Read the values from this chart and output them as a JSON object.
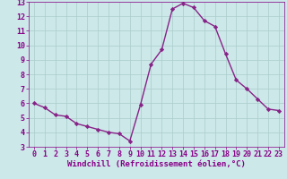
{
  "x": [
    0,
    1,
    2,
    3,
    4,
    5,
    6,
    7,
    8,
    9,
    10,
    11,
    12,
    13,
    14,
    15,
    16,
    17,
    18,
    19,
    20,
    21,
    22,
    23
  ],
  "y": [
    6.0,
    5.7,
    5.2,
    5.1,
    4.6,
    4.4,
    4.2,
    4.0,
    3.9,
    3.4,
    5.9,
    8.7,
    9.7,
    12.5,
    12.9,
    12.6,
    11.7,
    11.3,
    9.4,
    7.6,
    7.0,
    6.3,
    5.6,
    5.5
  ],
  "line_color": "#882288",
  "marker": "D",
  "marker_size": 2.2,
  "bg_color": "#cce8e8",
  "grid_color": "#aacccc",
  "xlabel": "Windchill (Refroidissement éolien,°C)",
  "xlabel_color": "#880088",
  "xlabel_fontsize": 6.5,
  "tick_label_color": "#880088",
  "tick_fontsize": 6,
  "ylim": [
    3,
    13
  ],
  "yticks": [
    3,
    4,
    5,
    6,
    7,
    8,
    9,
    10,
    11,
    12,
    13
  ],
  "xticks": [
    0,
    1,
    2,
    3,
    4,
    5,
    6,
    7,
    8,
    9,
    10,
    11,
    12,
    13,
    14,
    15,
    16,
    17,
    18,
    19,
    20,
    21,
    22,
    23
  ],
  "spine_color": "#880088",
  "linewidth": 1.0
}
